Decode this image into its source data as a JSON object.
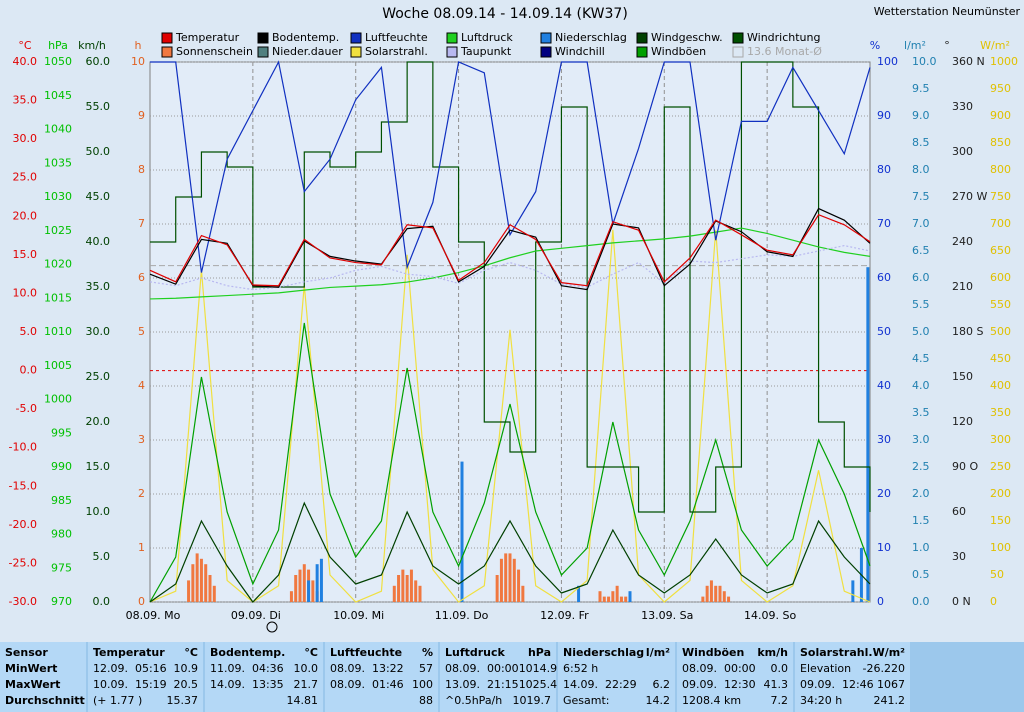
{
  "header": {
    "title": "Woche 08.09.14 - 14.09.14 (KW37)",
    "station": "Wetterstation Neumünster"
  },
  "chart": {
    "type": "line",
    "x": [
      0,
      6,
      12,
      18,
      24,
      30,
      36,
      42,
      48,
      54,
      60,
      66,
      72,
      78,
      84,
      90,
      96,
      102,
      108,
      114,
      120,
      126,
      132,
      138,
      144,
      150,
      156,
      162,
      168
    ],
    "xlim": [
      0,
      168
    ],
    "xticks": [
      {
        "value": 0,
        "label": "08.09. Mo"
      },
      {
        "value": 24,
        "label": "09.09. Di"
      },
      {
        "value": 48,
        "label": "10.09. Mi"
      },
      {
        "value": 72,
        "label": "11.09. Do"
      },
      {
        "value": 96,
        "label": "12.09. Fr"
      },
      {
        "value": 120,
        "label": "13.09. Sa"
      },
      {
        "value": 144,
        "label": "14.09. So"
      }
    ],
    "left_axes": [
      {
        "unit": "°C",
        "color": "#e00000",
        "lim": [
          -30,
          40
        ],
        "ticks": [
          {
            "value": 40,
            "label": "40.0"
          },
          {
            "value": 35,
            "label": "35.0"
          },
          {
            "value": 30,
            "label": "30.0"
          },
          {
            "value": 25,
            "label": "25.0"
          },
          {
            "value": 20,
            "label": "20.0"
          },
          {
            "value": 15,
            "label": "15.0"
          },
          {
            "value": 10,
            "label": "10.0"
          },
          {
            "value": 5,
            "label": "5.0"
          },
          {
            "value": 0,
            "label": "0.0"
          },
          {
            "value": -5,
            "label": "-5.0"
          },
          {
            "value": -10,
            "label": "-10.0"
          },
          {
            "value": -15,
            "label": "-15.0"
          },
          {
            "value": -20,
            "label": "-20.0"
          },
          {
            "value": -25,
            "label": "-25.0"
          },
          {
            "value": -30,
            "label": "-30.0"
          }
        ],
        "series": [
          {
            "name": "Temperatur",
            "color": "#e00000",
            "values": [
              13,
              11.5,
              17.5,
              16.3,
              11.1,
              11,
              17,
              14.6,
              14,
              13.7,
              18.9,
              18.5,
              11.7,
              14,
              18.9,
              17,
              11.4,
              11,
              19.3,
              18.2,
              11.5,
              14.6,
              19.5,
              17.6,
              15.6,
              15,
              20.2,
              18.9,
              16.7
            ]
          },
          {
            "name": "Bodentemp.",
            "color": "#000000",
            "values": [
              12.5,
              11.2,
              17,
              16.5,
              11,
              10.8,
              16.8,
              14.8,
              14.2,
              13.8,
              18.4,
              18.7,
              11.5,
              13.5,
              18.2,
              17.3,
              11,
              10.5,
              19,
              18.5,
              11,
              13.8,
              19.4,
              18,
              15.4,
              14.8,
              21,
              19.5,
              16.5
            ]
          },
          {
            "name": "Taupunkt",
            "color": "#b8b8f0",
            "dash": true,
            "values": [
              11.5,
              11,
              12,
              11,
              10.5,
              10.8,
              11.5,
              12,
              13,
              13.5,
              12.5,
              12.2,
              11.3,
              13,
              14,
              13,
              11.2,
              10.8,
              12.5,
              14,
              11.3,
              14.2,
              14,
              14.5,
              15,
              14.8,
              15.5,
              16.2,
              15.5
            ]
          }
        ],
        "reference": {
          "label": "13.6 Monat-Ø",
          "value": 13.6,
          "color": "#a8a8a8"
        }
      },
      {
        "unit": "hPa",
        "color": "#00c000",
        "lim": [
          970,
          1050
        ],
        "ticks": [
          1050,
          1045,
          1040,
          1035,
          1030,
          1025,
          1020,
          1015,
          1010,
          1005,
          1000,
          995,
          990,
          985,
          980,
          975,
          970
        ],
        "series": [
          {
            "name": "Luftdruck",
            "color": "#20d020",
            "values": [
              1014.9,
              1015,
              1015.2,
              1015.4,
              1015.6,
              1015.8,
              1016.2,
              1016.6,
              1016.8,
              1017,
              1017.4,
              1018,
              1018.8,
              1019.8,
              1021,
              1022,
              1022.4,
              1022.8,
              1023.2,
              1023.5,
              1023.8,
              1024.2,
              1024.8,
              1025.4,
              1024.6,
              1023.6,
              1022.6,
              1021.8,
              1021.2
            ]
          }
        ]
      },
      {
        "unit": "km/h",
        "color": "#004000",
        "lim": [
          0,
          60
        ],
        "ticks": [
          {
            "value": 60,
            "label": "60.0"
          },
          {
            "value": 55,
            "label": "55.0"
          },
          {
            "value": 50,
            "label": "50.0"
          },
          {
            "value": 45,
            "label": "45.0"
          },
          {
            "value": 40,
            "label": "40.0"
          },
          {
            "value": 35,
            "label": "35.0"
          },
          {
            "value": 30,
            "label": "30.0"
          },
          {
            "value": 25,
            "label": "25.0"
          },
          {
            "value": 20,
            "label": "20.0"
          },
          {
            "value": 15,
            "label": "15.0"
          },
          {
            "value": 10,
            "label": "10.0"
          },
          {
            "value": 5,
            "label": "5.0"
          },
          {
            "value": 0,
            "label": "0.0"
          }
        ],
        "series": [
          {
            "name": "Windgeschw.",
            "color": "#004000",
            "values": [
              0,
              2,
              9,
              4,
              0,
              3,
              11,
              5,
              2,
              3,
              10,
              4,
              2,
              4,
              9,
              4,
              1,
              2,
              8,
              3,
              1,
              3,
              7,
              3,
              1,
              2,
              9,
              5,
              2
            ]
          },
          {
            "name": "Windböen",
            "color": "#00a000",
            "values": [
              0,
              5,
              25,
              10,
              2,
              8,
              31,
              12,
              5,
              9,
              26,
              10,
              4,
              11,
              22,
              10,
              3,
              6,
              20,
              8,
              3,
              9,
              18,
              8,
              4,
              7,
              18,
              12,
              4
            ]
          }
        ]
      },
      {
        "unit": "h",
        "color": "#e06020",
        "lim": [
          0,
          10
        ],
        "grid": true,
        "ticks": [
          10,
          9,
          8,
          7,
          6,
          5,
          4,
          3,
          2,
          1,
          0
        ],
        "bars": [
          {
            "name": "Sonnenschein",
            "color": "#f07840",
            "x": [
              9,
              10,
              11,
              12,
              13,
              14,
              15,
              33,
              34,
              35,
              36,
              37,
              38,
              39,
              57,
              58,
              59,
              60,
              61,
              62,
              63,
              81,
              82,
              83,
              84,
              85,
              86,
              87,
              105,
              106,
              107,
              108,
              109,
              110,
              111,
              129,
              130,
              131,
              132,
              133,
              134,
              135
            ],
            "values": [
              0.4,
              0.7,
              0.9,
              0.8,
              0.7,
              0.5,
              0.3,
              0.2,
              0.5,
              0.6,
              0.7,
              0.6,
              0.4,
              0.2,
              0.3,
              0.5,
              0.6,
              0.5,
              0.6,
              0.4,
              0.3,
              0.5,
              0.8,
              0.9,
              0.9,
              0.8,
              0.6,
              0.3,
              0.2,
              0.1,
              0.1,
              0.2,
              0.3,
              0.1,
              0.1,
              0.1,
              0.3,
              0.4,
              0.3,
              0.3,
              0.2,
              0.1
            ]
          }
        ]
      }
    ],
    "right_axes": [
      {
        "unit": "%",
        "color": "#1030d0",
        "lim": [
          0,
          100
        ],
        "ticks": [
          100,
          90,
          80,
          70,
          60,
          50,
          40,
          30,
          20,
          10,
          0
        ],
        "series": [
          {
            "name": "Luftfeuchte",
            "color": "#1030c0",
            "values": [
              100,
              100,
              61,
              82,
              91,
              100,
              76,
              82,
              93,
              99,
              62,
              74,
              100,
              98,
              68,
              76,
              100,
              100,
              70,
              84,
              100,
              100,
              67,
              89,
              89,
              99,
              91,
              83,
              99
            ]
          }
        ]
      },
      {
        "unit": "l/m²",
        "color": "#2080b0",
        "lim": [
          0,
          10
        ],
        "ticks": [
          {
            "value": 10,
            "label": "10.0"
          },
          {
            "value": 9.5,
            "label": "9.5"
          },
          {
            "value": 9,
            "label": "9.0"
          },
          {
            "value": 8.5,
            "label": "8.5"
          },
          {
            "value": 8,
            "label": "8.0"
          },
          {
            "value": 7.5,
            "label": "7.5"
          },
          {
            "value": 7,
            "label": "7.0"
          },
          {
            "value": 6.5,
            "label": "6.5"
          },
          {
            "value": 6,
            "label": "6.0"
          },
          {
            "value": 5.5,
            "label": "5.5"
          },
          {
            "value": 5,
            "label": "5.0"
          },
          {
            "value": 4.5,
            "label": "4.5"
          },
          {
            "value": 4,
            "label": "4.0"
          },
          {
            "value": 3.5,
            "label": "3.5"
          },
          {
            "value": 3,
            "label": "3.0"
          },
          {
            "value": 2.5,
            "label": "2.5"
          },
          {
            "value": 2,
            "label": "2.0"
          },
          {
            "value": 1.5,
            "label": "1.5"
          },
          {
            "value": 1,
            "label": "1.0"
          },
          {
            "value": 0.5,
            "label": "0.5"
          },
          {
            "value": 0,
            "label": "0.0"
          }
        ],
        "bars": [
          {
            "name": "Niederschlag",
            "color": "#2080e0",
            "x": [
              37,
              39,
              40,
              72.8,
              100,
              112,
              164,
              166,
              167.5
            ],
            "values": [
              0.4,
              0.7,
              0.8,
              2.6,
              0.3,
              0.2,
              0.4,
              1.0,
              6.2
            ]
          }
        ]
      },
      {
        "unit": "°",
        "color": "#202020",
        "lim": [
          0,
          360
        ],
        "ticks": [
          {
            "value": 360,
            "label": "360 N"
          },
          330,
          300,
          {
            "value": 270,
            "label": "270 W"
          },
          240,
          210,
          {
            "value": 180,
            "label": "180 S"
          },
          150,
          120,
          {
            "value": 90,
            "label": "90 O"
          },
          60,
          30,
          {
            "value": 0,
            "label": "0 N"
          }
        ],
        "series": [
          {
            "name": "Windrichtung",
            "color": "#005000",
            "step": true,
            "values": [
              240,
              270,
              300,
              290,
              210,
              210,
              300,
              290,
              300,
              320,
              360,
              290,
              240,
              120,
              100,
              240,
              330,
              90,
              90,
              60,
              330,
              60,
              90,
              360,
              360,
              330,
              120,
              90,
              60
            ]
          }
        ]
      },
      {
        "unit": "W/m²",
        "color": "#e0c000",
        "lim": [
          0,
          1000
        ],
        "ticks": [
          1000,
          950,
          900,
          850,
          800,
          750,
          700,
          650,
          600,
          550,
          500,
          450,
          400,
          350,
          300,
          250,
          200,
          150,
          100,
          50,
          0
        ],
        "series": [
          {
            "name": "Solarstrahl.",
            "color": "#f0e040",
            "values": [
              0,
              20,
              615,
              40,
              0,
              30,
              587,
              50,
              0,
              20,
              643,
              60,
              0,
              30,
              504,
              30,
              0,
              40,
              689,
              50,
              0,
              40,
              689,
              40,
              0,
              30,
              244,
              20,
              0
            ]
          }
        ]
      }
    ],
    "legend_only": [
      {
        "name": "Nieder.dauer",
        "color": "#508080"
      },
      {
        "name": "Windchill",
        "color": "#000080"
      }
    ]
  },
  "table": {
    "panels": [
      {
        "title": "Sensor",
        "rows": [
          "MinWert",
          "MaxWert",
          "Durchschnitt"
        ]
      },
      {
        "title": "Temperatur",
        "unit": "°C",
        "rows": [
          [
            "12.09.  05:16",
            "10.9"
          ],
          [
            "10.09.  15:19",
            "20.5"
          ],
          [
            "(+ 1.77 )",
            "15.37"
          ]
        ]
      },
      {
        "title": "Bodentemp.",
        "unit": "°C",
        "rows": [
          [
            "11.09.  04:36",
            "10.0"
          ],
          [
            "14.09.  13:35",
            "21.7"
          ],
          [
            "14.81"
          ]
        ]
      },
      {
        "title": "Luftfeuchte",
        "unit": "%",
        "rows": [
          [
            "08.09.  13:22",
            "57"
          ],
          [
            "08.09.  01:46",
            "100"
          ],
          [
            "88"
          ]
        ]
      },
      {
        "title": "Luftdruck",
        "unit": "hPa",
        "rows": [
          [
            "08.09.  00:00",
            "1014.9"
          ],
          [
            "13.09.  21:15",
            "1025.4"
          ],
          [
            "^0.5hPa/h",
            "1019.7"
          ]
        ]
      },
      {
        "title": "Niederschlag",
        "unit": "l/m²",
        "rows": [
          [
            "6:52 h"
          ],
          [
            "14.09.  22:29",
            "6.2"
          ],
          [
            "Gesamt:",
            "14.2"
          ]
        ]
      },
      {
        "title": "Windböen",
        "unit": "km/h",
        "rows": [
          [
            "08.09.  00:00",
            "0.0"
          ],
          [
            "09.09.  12:30",
            "41.3"
          ],
          [
            "1208.4 km",
            "7.2"
          ]
        ]
      },
      {
        "title": "Solarstrahl.",
        "unit": "W/m²",
        "rows": [
          [
            "Elevation",
            "-26.220"
          ],
          [
            "09.09.  12:46",
            "1067"
          ],
          [
            "34:20 h",
            "241.2"
          ]
        ]
      }
    ]
  }
}
